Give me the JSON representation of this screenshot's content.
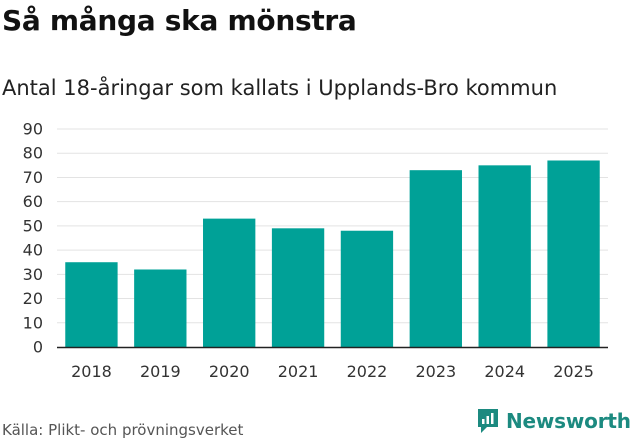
{
  "title": "Så många ska mönstra",
  "subtitle": "Antal 18-åringar som kallats i Upplands-Bro kommun",
  "source": "Källa: Plikt- och prövningsverket",
  "brand": {
    "name": "Newsworthy",
    "icon": "newsworthy-logo-icon",
    "color": "#1c8a80"
  },
  "colors": {
    "bar": "#00a197",
    "grid": "#e3e3e3",
    "axis": "#222222"
  },
  "chart_data": {
    "type": "bar",
    "title": "Så många ska mönstra",
    "subtitle": "Antal 18-åringar som kallats i Upplands-Bro kommun",
    "categories": [
      "2018",
      "2019",
      "2020",
      "2021",
      "2022",
      "2023",
      "2024",
      "2025"
    ],
    "values": [
      35,
      32,
      53,
      49,
      48,
      73,
      75,
      77
    ],
    "xlabel": "",
    "ylabel": "",
    "ylim": [
      0,
      90
    ],
    "yticks": [
      0,
      10,
      20,
      30,
      40,
      50,
      60,
      70,
      80,
      90
    ],
    "grid": true,
    "legend": "none"
  }
}
